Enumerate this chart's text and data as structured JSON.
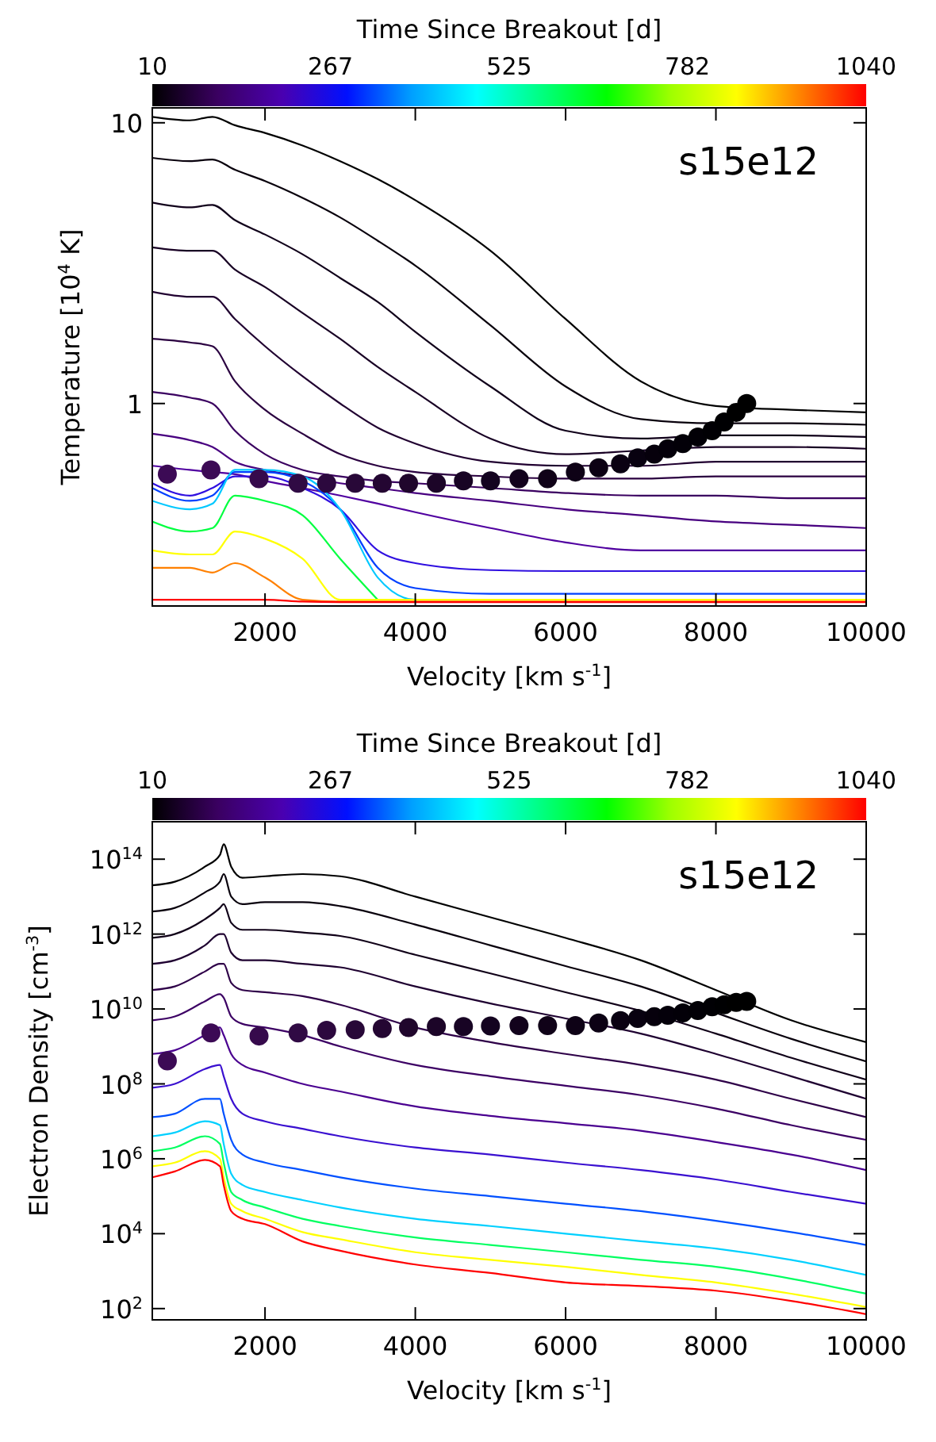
{
  "chart_data": [
    {
      "type": "line",
      "clabel": "Time Since Breakout [d]",
      "clim": [
        10,
        1040
      ],
      "cticks": [
        10,
        267,
        525,
        782,
        1040
      ],
      "annotations": [
        "s15e12"
      ],
      "xlabel": "Velocity [km s$^{-1}$]",
      "ylabel": "Temperature [10$^{4}$ K]",
      "log": "y",
      "xlim": [
        500,
        10000
      ],
      "xticks": [
        2000,
        4000,
        6000,
        8000,
        10000
      ],
      "ylim": [
        0.19,
        11.3
      ],
      "yticks": [
        1,
        10
      ],
      "x": [
        500,
        1000,
        1300,
        1600,
        2000,
        2500,
        3000,
        3500,
        4000,
        5000,
        6000,
        7000,
        8000,
        9000,
        10000
      ],
      "series": [
        {
          "color": "#000000",
          "values": [
            10.5,
            10.2,
            10.5,
            9.8,
            9.2,
            8.3,
            7.3,
            6.3,
            5.3,
            3.5,
            2.0,
            1.2,
            0.98,
            0.95,
            0.93
          ]
        },
        {
          "color": "#08000c",
          "values": [
            7.5,
            7.3,
            7.4,
            6.8,
            6.2,
            5.4,
            4.6,
            3.8,
            3.1,
            1.9,
            1.15,
            0.88,
            0.85,
            0.85,
            0.84
          ]
        },
        {
          "color": "#10001a",
          "values": [
            5.2,
            5.0,
            5.1,
            4.5,
            4.0,
            3.4,
            2.8,
            2.3,
            1.8,
            1.15,
            0.8,
            0.75,
            0.77,
            0.77,
            0.76
          ]
        },
        {
          "color": "#180024",
          "values": [
            3.6,
            3.5,
            3.5,
            3.0,
            2.6,
            2.1,
            1.7,
            1.35,
            1.1,
            0.75,
            0.66,
            0.68,
            0.7,
            0.7,
            0.69
          ]
        },
        {
          "color": "#200030",
          "values": [
            2.5,
            2.4,
            2.4,
            2.0,
            1.6,
            1.25,
            1.0,
            0.82,
            0.72,
            0.62,
            0.6,
            0.6,
            0.62,
            0.62,
            0.62
          ]
        },
        {
          "color": "#2a0040",
          "values": [
            1.7,
            1.65,
            1.6,
            1.2,
            0.95,
            0.78,
            0.66,
            0.6,
            0.57,
            0.55,
            0.54,
            0.54,
            0.55,
            0.55,
            0.55
          ]
        },
        {
          "color": "#3a0060",
          "values": [
            1.1,
            1.05,
            1.0,
            0.8,
            0.66,
            0.58,
            0.55,
            0.53,
            0.52,
            0.5,
            0.48,
            0.47,
            0.47,
            0.46,
            0.46
          ]
        },
        {
          "color": "#480080",
          "values": [
            0.78,
            0.74,
            0.7,
            0.62,
            0.58,
            0.55,
            0.52,
            0.5,
            0.48,
            0.45,
            0.42,
            0.4,
            0.38,
            0.37,
            0.36
          ]
        },
        {
          "color": "#5000a0",
          "values": [
            0.6,
            0.58,
            0.57,
            0.56,
            0.53,
            0.5,
            0.47,
            0.44,
            0.41,
            0.36,
            0.32,
            0.3,
            0.3,
            0.3,
            0.3
          ]
        },
        {
          "color": "#3010e0",
          "values": [
            0.52,
            0.47,
            0.5,
            0.55,
            0.55,
            0.5,
            0.42,
            0.3,
            0.27,
            0.255,
            0.253,
            0.253,
            0.253,
            0.253,
            0.253
          ]
        },
        {
          "color": "#0040ff",
          "values": [
            0.5,
            0.45,
            0.47,
            0.57,
            0.57,
            0.53,
            0.42,
            0.26,
            0.22,
            0.21,
            0.21,
            0.21,
            0.21,
            0.21,
            0.21
          ]
        },
        {
          "color": "#00c8ff",
          "values": [
            0.45,
            0.42,
            0.44,
            0.58,
            0.58,
            0.55,
            0.42,
            0.24,
            0.2,
            0.2,
            null,
            null,
            null,
            null,
            null
          ]
        },
        {
          "color": "#00ff40",
          "values": [
            0.38,
            0.35,
            0.36,
            0.47,
            0.45,
            0.4,
            0.28,
            0.2,
            null,
            null,
            null,
            null,
            null,
            null,
            null
          ]
        },
        {
          "color": "#ffff00",
          "values": [
            0.3,
            0.29,
            0.29,
            0.35,
            0.33,
            0.28,
            0.2,
            0.2,
            0.2,
            0.2,
            0.2,
            0.2,
            0.2,
            0.2,
            0.2
          ]
        },
        {
          "color": "#ff8000",
          "values": [
            0.26,
            0.26,
            0.25,
            0.27,
            0.24,
            0.2,
            0.197,
            0.197,
            0.197,
            0.197,
            0.197,
            0.197,
            0.197,
            0.197,
            0.197
          ]
        },
        {
          "color": "#ff0000",
          "values": [
            0.2,
            0.2,
            0.2,
            0.2,
            0.2,
            0.197,
            0.196,
            0.196,
            0.196,
            0.196,
            0.196,
            0.196,
            0.196,
            0.196,
            0.196
          ]
        },
        {
          "type": "scatter",
          "marker": "circle",
          "x": [
            700,
            1280,
            1920,
            2440,
            2820,
            3200,
            3560,
            3910,
            4280,
            4640,
            5000,
            5380,
            5760,
            6130,
            6440,
            6730,
            6960,
            7180,
            7360,
            7560,
            7760,
            7950,
            8110,
            8270,
            8410
          ],
          "values": [
            0.56,
            0.58,
            0.54,
            0.52,
            0.52,
            0.52,
            0.52,
            0.52,
            0.52,
            0.53,
            0.53,
            0.54,
            0.54,
            0.57,
            0.59,
            0.61,
            0.64,
            0.66,
            0.69,
            0.72,
            0.76,
            0.8,
            0.86,
            0.93,
            1.0
          ],
          "colors": [
            "#3c0a55",
            "#3c0a55",
            "#360a4c",
            "#300a44",
            "#2c083e",
            "#280838",
            "#240632",
            "#20062c",
            "#1c0528",
            "#180424",
            "#140320",
            "#12021c",
            "#100218",
            "#0e0216",
            "#0c0114",
            "#0a0112",
            "#080110",
            "#06000c",
            "#04000a",
            "#030008",
            "#020006",
            "#010004",
            "#000002",
            "#000000",
            "#000000"
          ]
        }
      ]
    },
    {
      "type": "line",
      "clabel": "Time Since Breakout [d]",
      "clim": [
        10,
        1040
      ],
      "cticks": [
        10,
        267,
        525,
        782,
        1040
      ],
      "annotations": [
        "s15e12"
      ],
      "xlabel": "Velocity [km s$^{-1}$]",
      "ylabel": "Electron Density [cm$^{-3}$]",
      "log": "y",
      "xlim": [
        500,
        10000
      ],
      "xticks": [
        2000,
        4000,
        6000,
        8000,
        10000
      ],
      "ylim": [
        50,
        1000000000000000.0
      ],
      "yticks": [
        {
          "value": 100,
          "label": "10$^{2}$"
        },
        {
          "value": 10000,
          "label": "10$^{4}$"
        },
        {
          "value": 1000000,
          "label": "10$^{6}$"
        },
        {
          "value": 100000000,
          "label": "10$^{8}$"
        },
        {
          "value": 10000000000,
          "label": "10$^{10}$"
        },
        {
          "value": 1000000000000,
          "label": "10$^{12}$"
        },
        {
          "value": 100000000000000,
          "label": "10$^{14}$"
        }
      ],
      "x": [
        500,
        800,
        1200,
        1400,
        1450,
        1550,
        1700,
        2000,
        2500,
        3000,
        4000,
        5000,
        6000,
        7000,
        8000,
        9000,
        10000
      ],
      "series": [
        {
          "color": "#000000",
          "values": [
            20000000000000.0,
            25000000000000.0,
            63000000000000.0,
            130000000000000.0,
            250000000000000.0,
            63000000000000.0,
            32000000000000.0,
            35000000000000.0,
            40000000000000.0,
            35000000000000.0,
            10000000000000.0,
            2800000000000.0,
            790000000000.0,
            200000000000.0,
            32000000000.0,
            5000000000.0,
            1300000000.0
          ]
        },
        {
          "color": "#08000c",
          "values": [
            4000000000000.0,
            5000000000000.0,
            13000000000000.0,
            25000000000000.0,
            40000000000000.0,
            10000000000000.0,
            6300000000000.0,
            7100000000000.0,
            7100000000000.0,
            5600000000000.0,
            1800000000000.0,
            500000000000.0,
            140000000000.0,
            40000000000.0,
            7900000000.0,
            1600000000.0,
            400000000.0
          ]
        },
        {
          "color": "#100018",
          "values": [
            790000000000.0,
            1000000000000.0,
            2500000000000.0,
            5000000000000.0,
            6300000000000.0,
            2000000000000.0,
            1300000000000.0,
            1300000000000.0,
            1100000000000.0,
            890000000000.0,
            280000000000.0,
            89000000000.0,
            28000000000.0,
            8900000000.0,
            2200000000.0,
            500000000.0,
            130000000.0
          ]
        },
        {
          "color": "#1e0030",
          "values": [
            160000000000.0,
            200000000000.0,
            500000000000.0,
            1000000000000.0,
            1000000000000.0,
            320000000000.0,
            200000000000.0,
            200000000000.0,
            160000000000.0,
            130000000000.0,
            40000000000.0,
            14000000000.0,
            5600000000.0,
            2200000000.0,
            630000000.0,
            160000000.0,
            40000000.0
          ]
        },
        {
          "color": "#2e0048",
          "values": [
            32000000000.0,
            40000000000.0,
            100000000000.0,
            160000000000.0,
            160000000000.0,
            50000000000.0,
            32000000000.0,
            28000000000.0,
            22000000000.0,
            13000000000.0,
            3200000000.0,
            1300000000.0,
            630000000.0,
            320000000.0,
            130000000.0,
            40000000.0,
            13000000.0
          ]
        },
        {
          "color": "#3c0064",
          "values": [
            5000000000.0,
            6300000000.0,
            16000000000.0,
            25000000000.0,
            20000000000.0,
            6300000000.0,
            4000000000.0,
            3200000000.0,
            2000000000.0,
            1000000000.0,
            320000000.0,
            160000000.0,
            89000000.0,
            50000000.0,
            22000000.0,
            7900000.0,
            3200000.0
          ]
        },
        {
          "color": "#4a0090",
          "values": [
            630000000.0,
            790000000.0,
            2000000000.0,
            3200000000.0,
            2000000000.0,
            630000000.0,
            320000000.0,
            200000000.0,
            100000000.0,
            63000000.0,
            25000000.0,
            14000000.0,
            8900000.0,
            5600000.0,
            2800000.0,
            1300000.0,
            500000.0
          ]
        },
        {
          "color": "#3a10d0",
          "values": [
            79000000.0,
            100000000.0,
            250000000.0,
            320000000.0,
            160000000.0,
            40000000.0,
            16000000.0,
            10000000.0,
            6300000.0,
            4000000.0,
            2000000.0,
            1300000.0,
            790000.0,
            500000.0,
            280000.0,
            130000.0,
            63000.0
          ]
        },
        {
          "color": "#0050ff",
          "values": [
            13000000.0,
            16000000.0,
            40000000.0,
            40000000.0,
            16000000.0,
            3200000.0,
            1300000.0,
            790000.0,
            500000.0,
            320000.0,
            160000.0,
            100000.0,
            63000.0,
            40000.0,
            22000.0,
            11000.0,
            5000.0
          ]
        },
        {
          "color": "#00d0ff",
          "values": [
            4000000.0,
            5000000.0,
            10000000.0,
            7900000.0,
            2500000.0,
            400000.0,
            200000.0,
            130000.0,
            79000.0,
            50000.0,
            25000.0,
            16000.0,
            10000.0,
            6300.0,
            4000.0,
            2000.0,
            790
          ]
        },
        {
          "color": "#00ff60",
          "values": [
            1600000.0,
            2000000.0,
            4000000.0,
            2500000.0,
            790000.0,
            130000.0,
            79000.0,
            50000.0,
            25000.0,
            16000.0,
            7900.0,
            5000.0,
            3200.0,
            2000.0,
            1300.0,
            630,
            250
          ]
        },
        {
          "color": "#ffff00",
          "values": [
            630000.0,
            790000.0,
            1600000.0,
            1000000.0,
            320000.0,
            63000.0,
            40000.0,
            25000.0,
            11000.0,
            7100.0,
            3200.0,
            2000.0,
            1300.0,
            790,
            500,
            250,
            110
          ]
        },
        {
          "color": "#ff0000",
          "values": [
            320000.0,
            460000.0,
            930000.0,
            630000.0,
            200000.0,
            40000.0,
            25000.0,
            18000.0,
            6200.0,
            3500.0,
            1500.0,
            890,
            500,
            400,
            300,
            160,
            71
          ]
        },
        {
          "type": "scatter",
          "marker": "circle",
          "x": [
            700,
            1280,
            1920,
            2440,
            2820,
            3200,
            3560,
            3910,
            4280,
            4640,
            5000,
            5380,
            5760,
            6130,
            6440,
            6730,
            6960,
            7180,
            7360,
            7560,
            7760,
            7950,
            8110,
            8270,
            8410
          ],
          "values": [
            410000000.0,
            2300000000.0,
            1900000000.0,
            2300000000.0,
            2700000000.0,
            2800000000.0,
            3000000000.0,
            3200000000.0,
            3400000000.0,
            3400000000.0,
            3500000000.0,
            3600000000.0,
            3600000000.0,
            3600000000.0,
            4200000000.0,
            4900000000.0,
            5600000000.0,
            6200000000.0,
            6800000000.0,
            7900000000.0,
            9100000000.0,
            11500000000.0,
            13000000000.0,
            15000000000.0,
            16000000000.0
          ],
          "colors": [
            "#3c0a55",
            "#3c0a55",
            "#360a4c",
            "#300a44",
            "#2c083e",
            "#280838",
            "#240632",
            "#20062c",
            "#1c0528",
            "#180424",
            "#140320",
            "#12021c",
            "#100218",
            "#0e0216",
            "#0c0114",
            "#0a0112",
            "#080110",
            "#06000c",
            "#04000a",
            "#030008",
            "#020006",
            "#010004",
            "#000002",
            "#000000",
            "#000000"
          ]
        }
      ]
    }
  ]
}
